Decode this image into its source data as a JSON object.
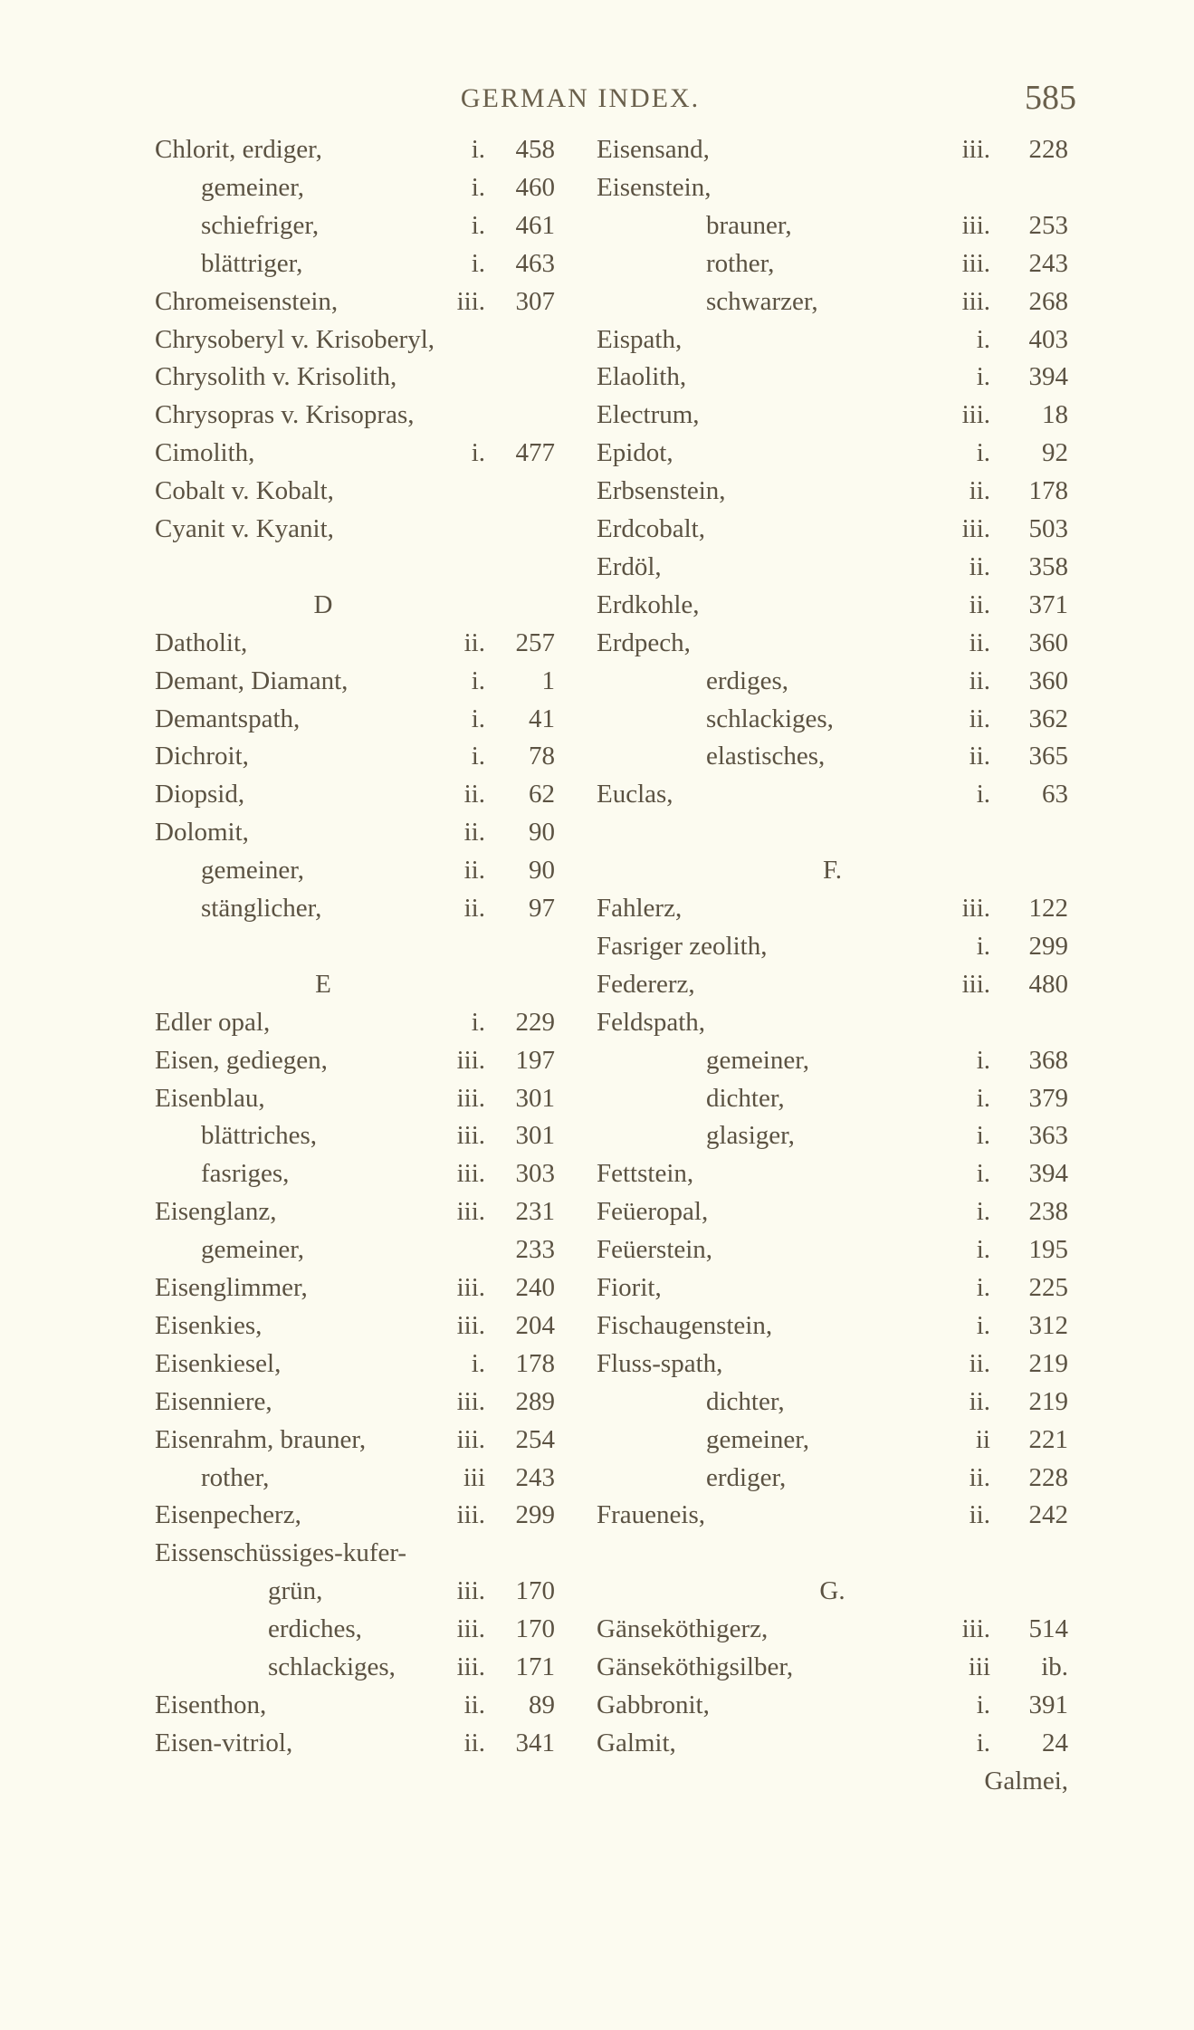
{
  "header": {
    "title": "GERMAN INDEX.",
    "page_number": "585"
  },
  "left": [
    {
      "name": "Chlorit, erdiger,",
      "vol": "i.",
      "page": "458"
    },
    {
      "name": "gemeiner,",
      "vol": "i.",
      "page": "460",
      "indent": true
    },
    {
      "name": "schiefriger,",
      "vol": "i.",
      "page": "461",
      "indent": true
    },
    {
      "name": "blättriger,",
      "vol": "i.",
      "page": "463",
      "indent": true
    },
    {
      "name": "Chromeisenstein,",
      "vol": "iii.",
      "page": "307"
    },
    {
      "name": "Chrysoberyl v. Krisoberyl,"
    },
    {
      "name": "Chrysolith v. Krisolith,"
    },
    {
      "name": "Chrysopras v. Krisopras,"
    },
    {
      "name": "Cimolith,",
      "vol": "i.",
      "page": "477"
    },
    {
      "name": "Cobalt v. Kobalt,"
    },
    {
      "name": "Cyanit v. Kyanit,"
    },
    {},
    {
      "heading": "D"
    },
    {
      "name": "Datholit,",
      "vol": "ii.",
      "page": "257"
    },
    {
      "name": "Demant, Diamant,",
      "vol": "i.",
      "page": "1"
    },
    {
      "name": "Demantspath,",
      "vol": "i.",
      "page": "41"
    },
    {
      "name": "Dichroit,",
      "vol": "i.",
      "page": "78"
    },
    {
      "name": "Diopsid,",
      "vol": "ii.",
      "page": "62"
    },
    {
      "name": "Dolomit,",
      "vol": "ii.",
      "page": "90"
    },
    {
      "name": "gemeiner,",
      "vol": "ii.",
      "page": "90",
      "indent": true
    },
    {
      "name": "stänglicher,",
      "vol": "ii.",
      "page": "97",
      "indent": true
    },
    {},
    {
      "heading": "E"
    },
    {
      "name": "Edler opal,",
      "vol": "i.",
      "page": "229"
    },
    {
      "name": "Eisen, gediegen,",
      "vol": "iii.",
      "page": "197"
    },
    {
      "name": "Eisenblau,",
      "vol": "iii.",
      "page": "301"
    },
    {
      "name": "blättriches,",
      "vol": "iii.",
      "page": "301",
      "indent": true
    },
    {
      "name": "fasriges,",
      "vol": "iii.",
      "page": "303",
      "indent": true
    },
    {
      "name": "Eisenglanz,",
      "vol": "iii.",
      "page": "231"
    },
    {
      "name": "gemeiner,",
      "page": "233",
      "indent": true
    },
    {
      "name": "Eisenglimmer,",
      "vol": "iii.",
      "page": "240"
    },
    {
      "name": "Eisenkies,",
      "vol": "iii.",
      "page": "204"
    },
    {
      "name": "Eisenkiesel,",
      "vol": "i.",
      "page": "178"
    },
    {
      "name": "Eisenniere,",
      "vol": "iii.",
      "page": "289"
    },
    {
      "name": "Eisenrahm, brauner,",
      "vol": "iii.",
      "page": "254"
    },
    {
      "name": "rother,",
      "vol": "iii",
      "page": "243",
      "indent": true
    },
    {
      "name": "Eisenpecherz,",
      "vol": "iii.",
      "page": "299"
    },
    {
      "name": "Eissenschüssiges-kufer-"
    },
    {
      "name": "grün,",
      "vol": "iii.",
      "page": "170",
      "indent2": true
    },
    {
      "name": "erdiches,",
      "vol": "iii.",
      "page": "170",
      "indent2": true
    },
    {
      "name": "schlackiges,",
      "vol": "iii.",
      "page": "171",
      "indent2": true
    },
    {
      "name": "Eisenthon,",
      "vol": "ii.",
      "page": "89"
    },
    {
      "name": "Eisen-vitriol,",
      "vol": "ii.",
      "page": "341"
    }
  ],
  "right": [
    {
      "name": "Eisensand,",
      "vol": "iii.",
      "page": "228"
    },
    {
      "name": "Eisenstein,"
    },
    {
      "name": "brauner,",
      "vol": "iii.",
      "page": "253",
      "indent": true
    },
    {
      "name": "rother,",
      "vol": "iii.",
      "page": "243",
      "indent": true
    },
    {
      "name": "schwarzer,",
      "vol": "iii.",
      "page": "268",
      "indent": true
    },
    {
      "name": "Eispath,",
      "vol": "i.",
      "page": "403"
    },
    {
      "name": "Elaolith,",
      "vol": "i.",
      "page": "394"
    },
    {
      "name": "Electrum,",
      "vol": "iii.",
      "page": "18"
    },
    {
      "name": "Epidot,",
      "vol": "i.",
      "page": "92"
    },
    {
      "name": "Erbsenstein,",
      "vol": "ii.",
      "page": "178"
    },
    {
      "name": "Erdcobalt,",
      "vol": "iii.",
      "page": "503"
    },
    {
      "name": "Erdöl,",
      "vol": "ii.",
      "page": "358"
    },
    {
      "name": "Erdkohle,",
      "vol": "ii.",
      "page": "371"
    },
    {
      "name": "Erdpech,",
      "vol": "ii.",
      "page": "360"
    },
    {
      "name": "erdiges,",
      "vol": "ii.",
      "page": "360",
      "indent": true
    },
    {
      "name": "schlackiges,",
      "vol": "ii.",
      "page": "362",
      "indent": true
    },
    {
      "name": "elastisches,",
      "vol": "ii.",
      "page": "365",
      "indent": true
    },
    {
      "name": "Euclas,",
      "vol": "i.",
      "page": "63"
    },
    {},
    {
      "heading": "F."
    },
    {
      "name": "Fahlerz,",
      "vol": "iii.",
      "page": "122"
    },
    {
      "name": "Fasriger zeolith,",
      "vol": "i.",
      "page": "299"
    },
    {
      "name": "Federerz,",
      "vol": "iii.",
      "page": "480"
    },
    {
      "name": "Feldspath,"
    },
    {
      "name": "gemeiner,",
      "vol": "i.",
      "page": "368",
      "indent": true
    },
    {
      "name": "dichter,",
      "vol": "i.",
      "page": "379",
      "indent": true
    },
    {
      "name": "glasiger,",
      "vol": "i.",
      "page": "363",
      "indent": true
    },
    {
      "name": "Fettstein,",
      "vol": "i.",
      "page": "394"
    },
    {
      "name": "Feüeropal,",
      "vol": "i.",
      "page": "238"
    },
    {
      "name": "Feüerstein,",
      "vol": "i.",
      "page": "195"
    },
    {
      "name": "Fiorit,",
      "vol": "i.",
      "page": "225"
    },
    {
      "name": "Fischaugenstein,",
      "vol": "i.",
      "page": "312"
    },
    {
      "name": "Fluss-spath,",
      "vol": "ii.",
      "page": "219"
    },
    {
      "name": "dichter,",
      "vol": "ii.",
      "page": "219",
      "indent": true
    },
    {
      "name": "gemeiner,",
      "vol": "ii",
      "page": "221",
      "indent": true
    },
    {
      "name": "erdiger,",
      "vol": "ii.",
      "page": "228",
      "indent": true
    },
    {
      "name": "Fraueneis,",
      "vol": "ii.",
      "page": "242"
    },
    {},
    {
      "heading": "G."
    },
    {
      "name": "Gänseköthigerz,",
      "vol": "iii.",
      "page": "514"
    },
    {
      "name": "Gänseköthigsilber,",
      "vol": "iii",
      "page": "ib."
    },
    {
      "name": "Gabbronit,",
      "vol": "i.",
      "page": "391"
    },
    {
      "name": "Galmit,",
      "vol": "i.",
      "page": "24"
    }
  ],
  "catchword": "Galmei,"
}
